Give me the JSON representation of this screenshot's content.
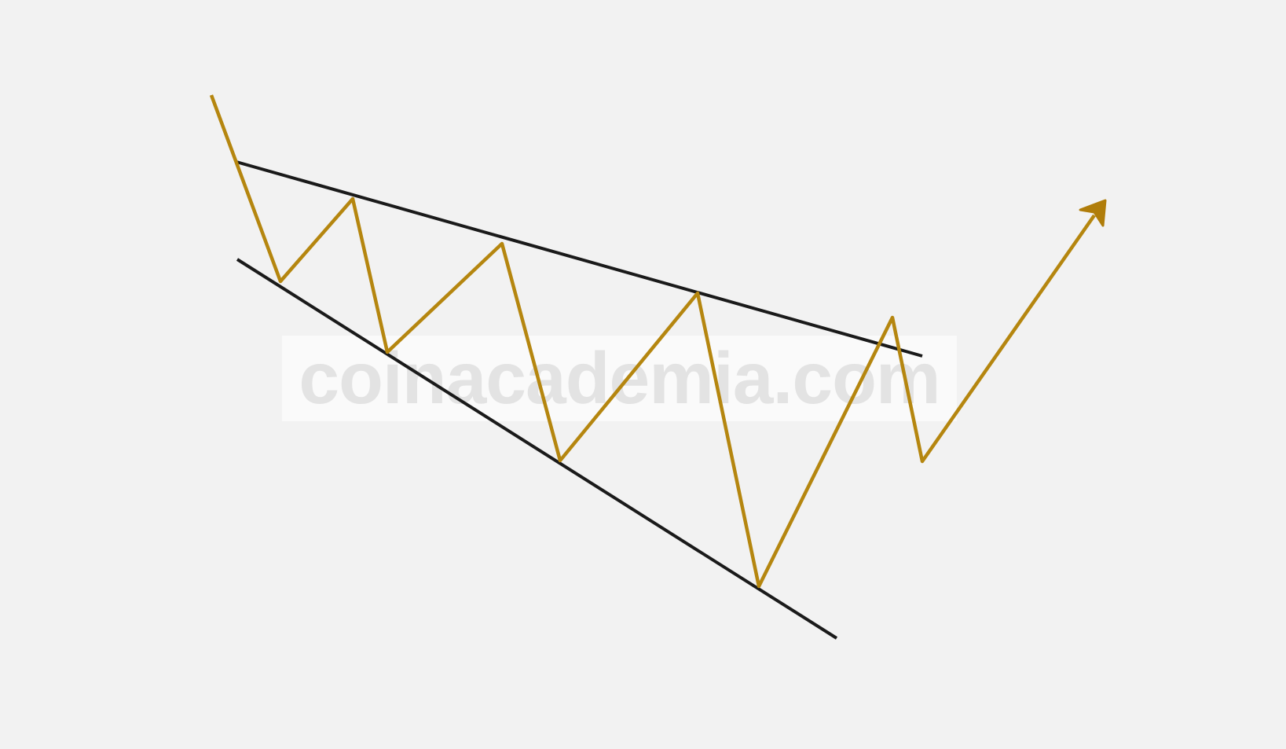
{
  "watermark": {
    "text": "coinacademia.com"
  },
  "colors": {
    "background": "#f2f2f2",
    "trendline": "#1a1a1a",
    "price_path": "#b5860f",
    "arrow": "#b07d0a",
    "watermark_text": "#e3e3e3"
  },
  "diagram": {
    "pattern": "falling wedge",
    "breakout_direction": "up",
    "icon": "arrow-up-right-icon"
  }
}
